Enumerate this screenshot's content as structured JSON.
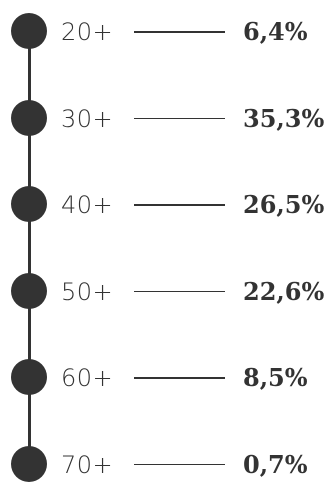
{
  "chart_data": {
    "type": "table",
    "categories": [
      "20+",
      "30+",
      "40+",
      "50+",
      "60+",
      "70+"
    ],
    "values": [
      6.4,
      35.3,
      26.5,
      22.6,
      8.5,
      0.7
    ],
    "value_labels": [
      "6,4%",
      "35,3%",
      "26,5%",
      "22,6%",
      "8,5%",
      "0,7%"
    ],
    "title": "",
    "xlabel": "",
    "ylabel": ""
  },
  "colors": {
    "ink": "#333333",
    "background": "#ffffff"
  }
}
